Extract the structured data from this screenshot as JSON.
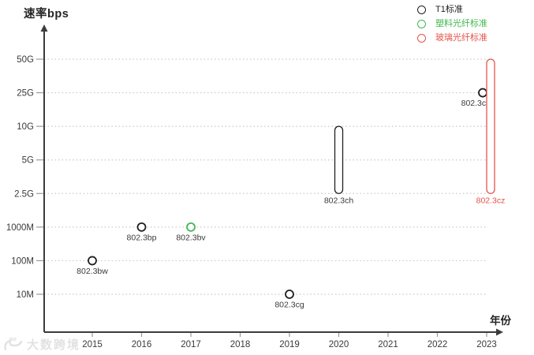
{
  "axis": {
    "y_title": "速率bps",
    "x_title": "年份"
  },
  "legend": {
    "items": [
      {
        "label": "T1标准",
        "color_key": "black"
      },
      {
        "label": "塑料光纤标准",
        "color_key": "green"
      },
      {
        "label": "玻璃光纤标准",
        "color_key": "red"
      }
    ]
  },
  "watermark": {
    "text": "大数跨境"
  },
  "colors": {
    "black": "#1f1f1f",
    "green": "#3eb94e",
    "red": "#e4544a",
    "axis": "#3c3c3c",
    "grid": "#c9c9c9",
    "tick": "#9a9a9a",
    "tick_text": "#3a3a3a",
    "point_label": "#3a3a3a",
    "watermark": "#e2e2e2"
  },
  "chart_data": {
    "type": "scatter",
    "title": "",
    "xlabel": "年份",
    "ylabel": "速率bps",
    "x_ticks": [
      2015,
      2016,
      2017,
      2018,
      2019,
      2020,
      2021,
      2022,
      2023
    ],
    "y_ticks": [
      "10M",
      "100M",
      "1000M",
      "2.5G",
      "5G",
      "10G",
      "25G",
      "50G"
    ],
    "grid": "horizontal-dotted",
    "legend_position": "top-right",
    "series": [
      {
        "name": "T1标准",
        "color_key": "black",
        "points": [
          {
            "label": "802.3bw",
            "year": 2015,
            "speed": "100M"
          },
          {
            "label": "802.3bp",
            "year": 2016,
            "speed": "1000M"
          },
          {
            "label": "802.3cg",
            "year": 2019,
            "speed": "10M"
          },
          {
            "label": "802.3ch",
            "year": 2020,
            "speed_min": "2.5G",
            "speed_max": "10G"
          },
          {
            "label": "802.3cy",
            "year": 2023,
            "speed": "25G"
          }
        ]
      },
      {
        "name": "塑料光纤标准",
        "color_key": "green",
        "points": [
          {
            "label": "802.3bv",
            "year": 2017,
            "speed": "1000M"
          }
        ]
      },
      {
        "name": "玻璃光纤标准",
        "color_key": "red",
        "points": [
          {
            "label": "802.3cz",
            "year": 2023,
            "speed_min": "2.5G",
            "speed_max": "50G"
          }
        ]
      }
    ]
  }
}
